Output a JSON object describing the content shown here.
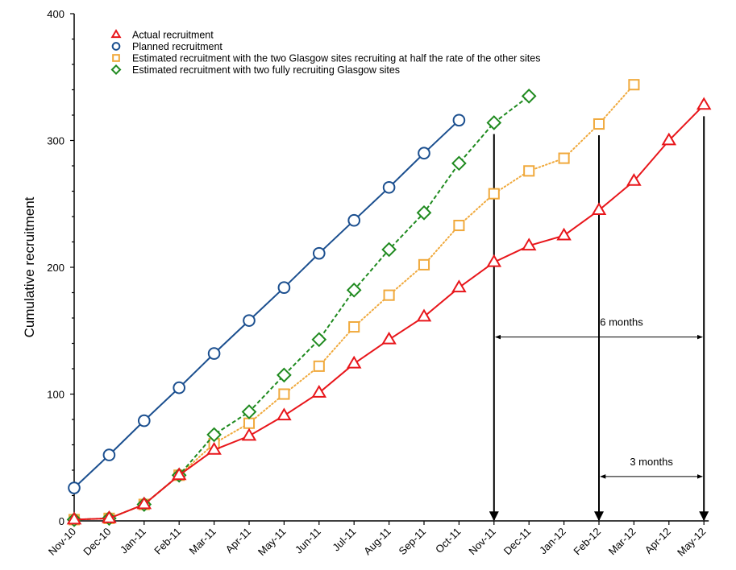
{
  "chart_data": {
    "type": "line",
    "title": "",
    "xlabel": "",
    "ylabel": "Cumulative recruitment",
    "ylim": [
      0,
      400
    ],
    "yticks": [
      0,
      100,
      200,
      300,
      400
    ],
    "grid": false,
    "legend_position": "top-left",
    "categories": [
      "Nov-10",
      "Dec-10",
      "Jan-11",
      "Feb-11",
      "Mar-11",
      "Apr-11",
      "May-11",
      "Jun-11",
      "Jul-11",
      "Aug-11",
      "Sep-11",
      "Oct-11",
      "Nov-11",
      "Dec-11",
      "Jan-12",
      "Feb-12",
      "Mar-12",
      "Apr-12",
      "May-12"
    ],
    "series": [
      {
        "name": "Actual recruitment",
        "color": "#e8161b",
        "marker": "triangle",
        "line_style": "solid",
        "values": [
          1,
          2,
          13,
          36,
          56,
          67,
          83,
          101,
          124,
          143,
          161,
          184,
          204,
          217,
          225,
          245,
          268,
          300,
          328
        ]
      },
      {
        "name": "Planned recruitment",
        "color": "#1b4f8f",
        "marker": "circle",
        "line_style": "solid",
        "values": [
          26,
          52,
          79,
          105,
          132,
          158,
          184,
          211,
          237,
          263,
          290,
          316,
          null,
          null,
          null,
          null,
          null,
          null,
          null
        ]
      },
      {
        "name": "Estimated recruitment with the two Glasgow sites recruiting at half the rate of the other sites",
        "color": "#f0a93c",
        "marker": "square",
        "line_style": "dotted",
        "values": [
          1,
          2,
          13,
          36,
          61,
          77,
          100,
          122,
          153,
          178,
          202,
          233,
          258,
          276,
          286,
          313,
          344,
          null,
          null
        ]
      },
      {
        "name": "Estimated recruitment with two fully recruiting Glasgow sites",
        "color": "#1f8a1f",
        "marker": "diamond",
        "line_style": "dashed",
        "values": [
          1,
          2,
          13,
          36,
          68,
          86,
          115,
          143,
          182,
          214,
          243,
          282,
          314,
          335,
          null,
          null,
          null,
          null,
          null
        ]
      }
    ],
    "annotations": {
      "down_arrows_at": [
        "Nov-11",
        "Feb-12",
        "May-12"
      ],
      "spans": [
        {
          "label": "6 months",
          "from": "Nov-11",
          "to": "May-12",
          "y": 145
        },
        {
          "label": "3 months",
          "from": "Feb-12",
          "to": "May-12",
          "y": 35
        }
      ]
    }
  }
}
